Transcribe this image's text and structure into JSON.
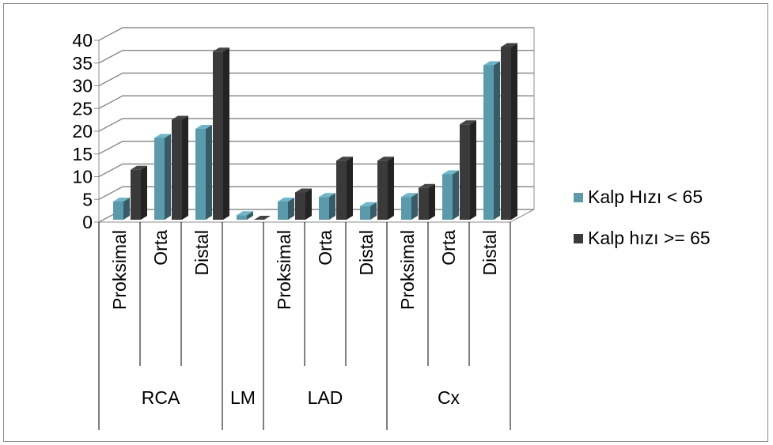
{
  "chart_data": {
    "type": "bar",
    "title": "",
    "xlabel": "",
    "ylabel": "",
    "ylim": [
      0,
      40
    ],
    "yticks": [
      "0",
      "5",
      "10",
      "15",
      "20",
      "25",
      "30",
      "35",
      "40"
    ],
    "groups": [
      {
        "label": "RCA",
        "categories": [
          "Proksimal",
          "Orta",
          "Distal"
        ]
      },
      {
        "label": "LM",
        "categories": [
          ""
        ]
      },
      {
        "label": "LAD",
        "categories": [
          "Proksimal",
          "Orta",
          "Distal"
        ]
      },
      {
        "label": "Cx",
        "categories": [
          "Proksimal",
          "Orta",
          "Distal"
        ]
      }
    ],
    "series": [
      {
        "name": "Kalp Hızı < 65",
        "color": "#5b9aab",
        "values": [
          4,
          18,
          20,
          1,
          4,
          5,
          3,
          5,
          10,
          34
        ]
      },
      {
        "name": "Kalp hızı >= 65",
        "color": "#3a3a3a",
        "values": [
          11,
          22,
          37,
          0,
          6,
          13,
          13,
          7,
          21,
          38
        ]
      }
    ],
    "grid": true,
    "legend_position": "right"
  }
}
